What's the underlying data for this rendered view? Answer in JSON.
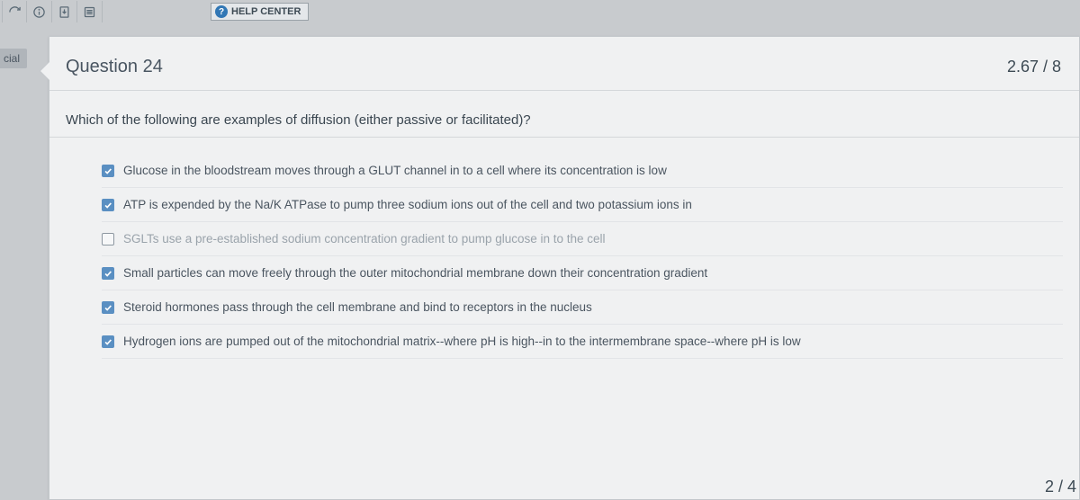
{
  "toolbar": {
    "help_label": "HELP CENTER"
  },
  "sidebar": {
    "tag": "cial"
  },
  "question": {
    "title": "Question 24",
    "score": "2.67 / 8",
    "prompt": "Which of the following are examples of diffusion (either passive or facilitated)?",
    "options": [
      {
        "checked": true,
        "faded": false,
        "text": "Glucose in the bloodstream moves through a GLUT channel in to a cell where its concentration is low"
      },
      {
        "checked": true,
        "faded": false,
        "text": "ATP is expended by the Na/K ATPase to pump three sodium ions out of the cell and two potassium ions in"
      },
      {
        "checked": false,
        "faded": true,
        "text": "SGLTs use a pre-established sodium concentration gradient to pump glucose in to the cell"
      },
      {
        "checked": true,
        "faded": false,
        "text": "Small particles can move freely through the outer mitochondrial membrane down their concentration gradient"
      },
      {
        "checked": true,
        "faded": false,
        "text": "Steroid hormones pass through the cell membrane and bind to receptors in the nucleus"
      },
      {
        "checked": true,
        "faded": false,
        "text": "Hydrogen ions are pumped out of the mitochondrial matrix--where pH is high--in to the intermembrane space--where pH is low"
      }
    ]
  },
  "footer": {
    "next_score": "2 / 4"
  },
  "colors": {
    "page_bg": "#c8cbce",
    "sheet_bg": "#f0f1f2",
    "check_fill": "#5a8fc2",
    "text": "#3a4650"
  }
}
